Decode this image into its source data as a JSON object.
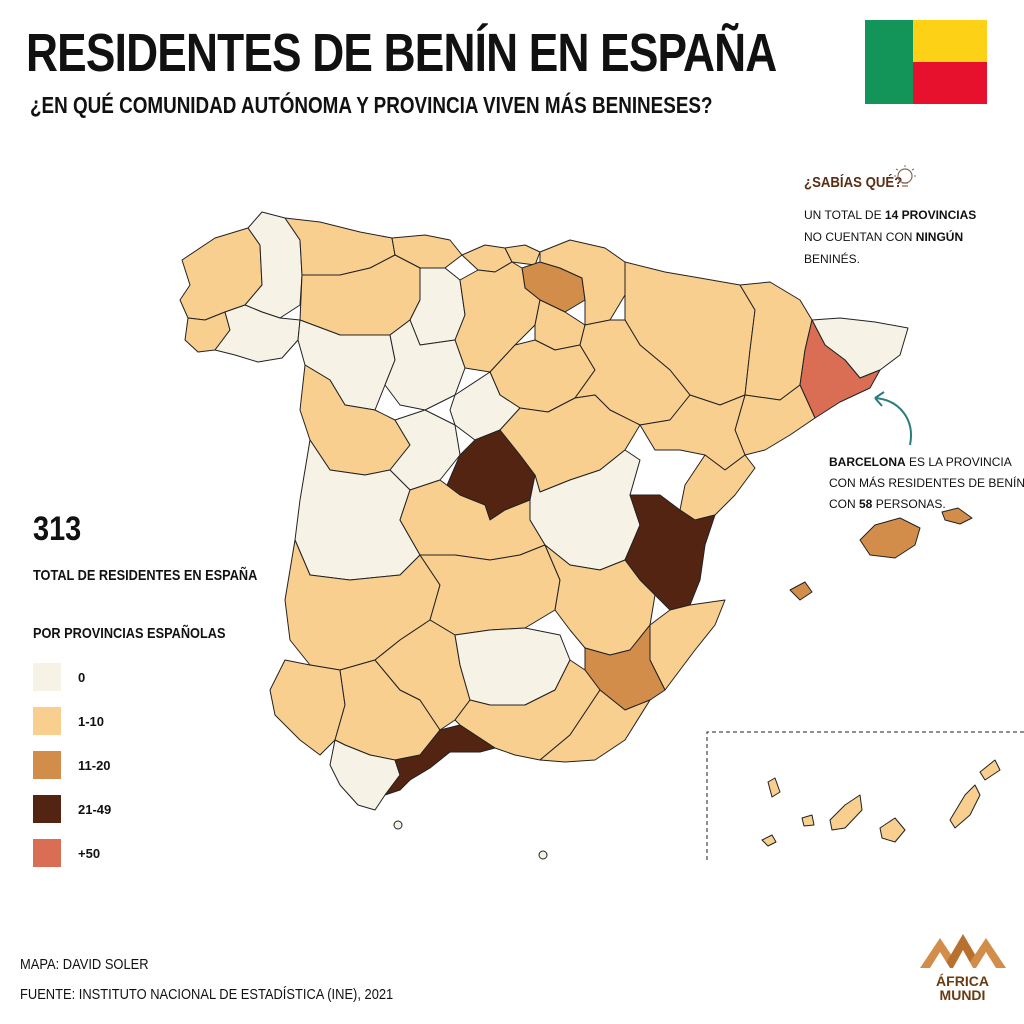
{
  "title": "RESIDENTES DE BENÍN EN ESPAÑA",
  "subtitle": "¿EN QUÉ COMUNIDAD AUTÓNOMA Y PROVINCIA VIVEN MÁS BENINESES?",
  "total": {
    "value": "313",
    "label": "TOTAL DE RESIDENTES EN ESPAÑA"
  },
  "legend": {
    "title": "POR PROVINCIAS ESPAÑOLAS",
    "items": [
      {
        "label": "0",
        "color": "#f6f2e6"
      },
      {
        "label": "1-10",
        "color": "#f9cf8f"
      },
      {
        "label": "11-20",
        "color": "#d38d4b"
      },
      {
        "label": "21-49",
        "color": "#532411"
      },
      {
        "label": "+50",
        "color": "#d96e55"
      }
    ]
  },
  "fact": {
    "title": "¿SABÍAS QUÉ?",
    "text_1": "UN TOTAL DE ",
    "bold_1": "14 PROVINCIAS",
    "text_2": " NO CUENTAN CON ",
    "bold_2": "NINGÚN",
    "text_3": " BENINÉS."
  },
  "callout": {
    "bold_1": "BARCELONA",
    "text_1": " ES LA PROVINCIA CON MÁS RESIDENTES DE BENÍN CON ",
    "bold_2": "58",
    "text_2": " PERSONAS."
  },
  "credits": {
    "map": "MAPA: DAVID SOLER",
    "source": "FUENTE: INSTITUTO NACIONAL DE ESTADÍSTICA (INE), 2021"
  },
  "logo": {
    "line1": "ÁFRICA",
    "line2": "MUNDI"
  },
  "flag_colors": {
    "green": "#13955a",
    "yellow": "#fcd116",
    "red": "#e8112d"
  },
  "accent_callout_arrow": "#2a7d7b"
}
